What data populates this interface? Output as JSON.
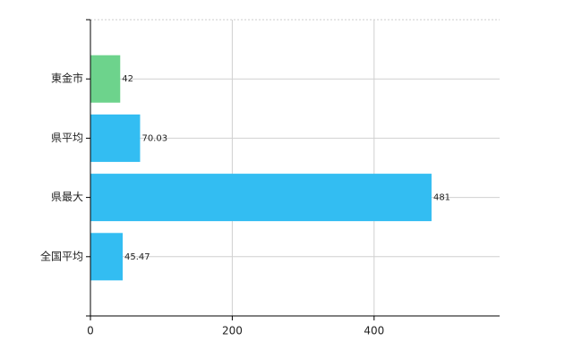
{
  "chart_data": {
    "type": "bar",
    "orientation": "horizontal",
    "categories": [
      "東金市",
      "県平均",
      "県最大",
      "全国平均"
    ],
    "values": [
      42,
      70.03,
      481,
      45.47
    ],
    "colors": [
      "#6dd38c",
      "#33bdf2",
      "#33bdf2",
      "#33bdf2"
    ],
    "xlim": [
      0,
      577
    ],
    "xticks": [
      0,
      200,
      400
    ],
    "grid": true
  }
}
